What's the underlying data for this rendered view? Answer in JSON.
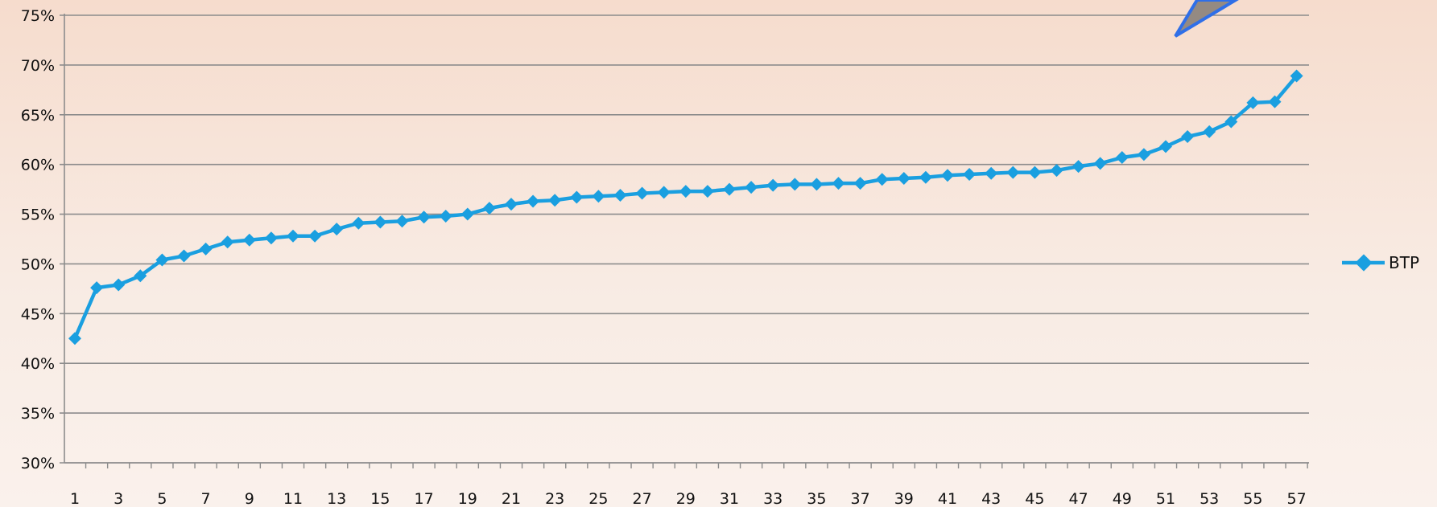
{
  "chart_data": {
    "type": "line",
    "title": "",
    "xlabel": "",
    "ylabel": "",
    "x": [
      1,
      2,
      3,
      4,
      5,
      6,
      7,
      8,
      9,
      10,
      11,
      12,
      13,
      14,
      15,
      16,
      17,
      18,
      19,
      20,
      21,
      22,
      23,
      24,
      25,
      26,
      27,
      28,
      29,
      30,
      31,
      32,
      33,
      34,
      35,
      36,
      37,
      38,
      39,
      40,
      41,
      42,
      43,
      44,
      45,
      46,
      47,
      48,
      49,
      50,
      51,
      52,
      53,
      54,
      55,
      56,
      57
    ],
    "x_tick_labels": [
      "1",
      "3",
      "5",
      "7",
      "9",
      "11",
      "13",
      "15",
      "17",
      "19",
      "21",
      "23",
      "25",
      "27",
      "29",
      "31",
      "33",
      "35",
      "37",
      "39",
      "41",
      "43",
      "45",
      "47",
      "49",
      "51",
      "53",
      "55",
      "57"
    ],
    "y_tick_labels": [
      "30%",
      "35%",
      "40%",
      "45%",
      "50%",
      "55%",
      "60%",
      "65%",
      "70%",
      "75%"
    ],
    "ylim": [
      0.3,
      0.75
    ],
    "grid": true,
    "legend_position": "right",
    "series": [
      {
        "name": "BTP",
        "color": "#1a9fe0",
        "values": [
          0.425,
          0.476,
          0.479,
          0.488,
          0.504,
          0.508,
          0.515,
          0.522,
          0.524,
          0.526,
          0.528,
          0.528,
          0.535,
          0.541,
          0.542,
          0.543,
          0.547,
          0.548,
          0.55,
          0.556,
          0.56,
          0.563,
          0.564,
          0.567,
          0.568,
          0.569,
          0.571,
          0.572,
          0.573,
          0.573,
          0.575,
          0.577,
          0.579,
          0.58,
          0.58,
          0.581,
          0.581,
          0.585,
          0.586,
          0.587,
          0.589,
          0.59,
          0.591,
          0.592,
          0.592,
          0.594,
          0.598,
          0.601,
          0.607,
          0.61,
          0.618,
          0.628,
          0.633,
          0.643,
          0.662,
          0.663,
          0.689
        ]
      }
    ]
  },
  "decoration": {
    "arrow_fill": "#948a82",
    "arrow_stroke": "#2f6fe8"
  }
}
